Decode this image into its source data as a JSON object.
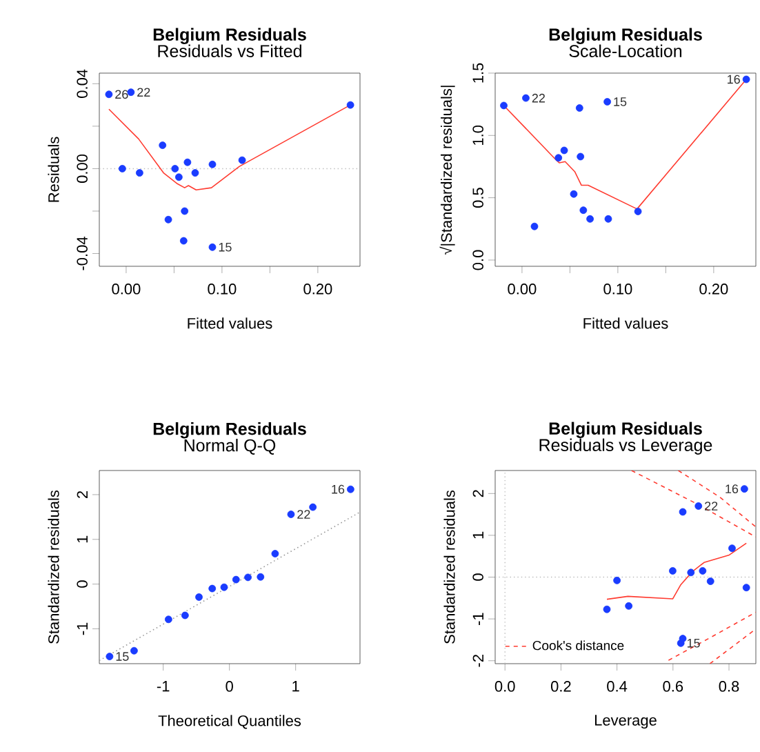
{
  "chart_data": [
    {
      "type": "scatter",
      "title": "Belgium Residuals",
      "subtitle": "Residuals vs Fitted",
      "xlabel": "Fitted values",
      "ylabel": "Residuals",
      "xlim": [
        -0.028,
        0.244
      ],
      "ylim": [
        -0.046,
        0.045
      ],
      "xticks": [
        {
          "value": 0,
          "label": "0.00"
        },
        {
          "value": 0.05,
          "label": null
        },
        {
          "value": 0.1,
          "label": "0.10"
        },
        {
          "value": 0.15,
          "label": null
        },
        {
          "value": 0.2,
          "label": "0.20"
        }
      ],
      "yticks": [
        {
          "value": -0.04,
          "label": "-0.04"
        },
        {
          "value": -0.02,
          "label": null
        },
        {
          "value": 0,
          "label": "0.00"
        },
        {
          "value": 0.02,
          "label": null
        },
        {
          "value": 0.04,
          "label": "0.04"
        }
      ],
      "series": [
        {
          "type": "scatter",
          "marker": "circle",
          "color": "#1a3cff",
          "x": [
            -0.018,
            0.005,
            -0.004,
            0.014,
            0.038,
            0.044,
            0.051,
            0.055,
            0.064,
            0.072,
            0.061,
            0.06,
            0.09,
            0.09,
            0.121,
            0.234
          ],
          "values": [
            0.035,
            0.036,
            0.0,
            -0.002,
            0.011,
            -0.024,
            0.0,
            -0.004,
            0.003,
            -0.002,
            -0.02,
            -0.034,
            0.002,
            -0.037,
            0.004,
            0.03
          ]
        },
        {
          "type": "line",
          "color": "#ff3b30",
          "x": [
            -0.018,
            0.013,
            0.039,
            0.053,
            0.061,
            0.065,
            0.073,
            0.089,
            0.118,
            0.234
          ],
          "values": [
            0.028,
            0.014,
            -0.002,
            -0.007,
            -0.009,
            -0.008,
            -0.01,
            -0.009,
            0.001,
            0.03
          ]
        }
      ],
      "ref_lines": [
        {
          "axis": "y",
          "value": 0,
          "color": "#bbbbbb",
          "line_style": "dotted"
        }
      ],
      "annotations": [
        {
          "text": "26",
          "x": -0.018,
          "y": 0.035
        },
        {
          "text": "22",
          "x": 0.005,
          "y": 0.036
        },
        {
          "text": "15",
          "x": 0.09,
          "y": -0.037
        }
      ]
    },
    {
      "type": "scatter",
      "title": "Belgium Residuals",
      "subtitle": "Scale-Location",
      "xlabel": "Fitted values",
      "ylabel": "√|Standardized residuals|",
      "xlim": [
        -0.028,
        0.244
      ],
      "ylim": [
        -0.05,
        1.5
      ],
      "xticks": [
        {
          "value": 0,
          "label": "0.00"
        },
        {
          "value": 0.05,
          "label": null
        },
        {
          "value": 0.1,
          "label": "0.10"
        },
        {
          "value": 0.15,
          "label": null
        },
        {
          "value": 0.2,
          "label": "0.20"
        }
      ],
      "yticks": [
        {
          "value": 0,
          "label": "0.0"
        },
        {
          "value": 0.5,
          "label": "0.5"
        },
        {
          "value": 1,
          "label": "1.0"
        },
        {
          "value": 1.5,
          "label": "1.5"
        }
      ],
      "series": [
        {
          "type": "scatter",
          "marker": "circle",
          "color": "#1a3cff",
          "x": [
            -0.019,
            0.004,
            0.013,
            0.038,
            0.044,
            0.054,
            0.06,
            0.061,
            0.064,
            0.071,
            0.089,
            0.09,
            0.121,
            0.234
          ],
          "values": [
            1.24,
            1.3,
            0.27,
            0.82,
            0.88,
            0.53,
            1.22,
            0.83,
            0.4,
            0.33,
            1.27,
            0.33,
            0.39,
            1.45
          ]
        },
        {
          "type": "line",
          "color": "#ff3b30",
          "x": [
            -0.019,
            0.036,
            0.039,
            0.045,
            0.055,
            0.062,
            0.069,
            0.12,
            0.234
          ],
          "values": [
            1.24,
            0.8,
            0.78,
            0.79,
            0.71,
            0.6,
            0.6,
            0.41,
            1.45
          ]
        }
      ],
      "annotations": [
        {
          "text": "22",
          "x": 0.004,
          "y": 1.3
        },
        {
          "text": "15",
          "x": 0.089,
          "y": 1.27
        },
        {
          "text": "16",
          "x": 0.234,
          "y": 1.45
        }
      ]
    },
    {
      "type": "scatter",
      "title": "Belgium Residuals",
      "subtitle": "Normal Q-Q",
      "xlabel": "Theoretical Quantiles",
      "ylabel": "Standardized residuals",
      "xlim": [
        -1.965,
        1.972
      ],
      "ylim": [
        -1.78,
        2.54
      ],
      "xticks": [
        -1,
        0,
        1
      ],
      "yticks": [
        -1,
        0,
        1,
        2
      ],
      "series": [
        {
          "type": "scatter",
          "marker": "circle",
          "color": "#1a3cff",
          "x": [
            -1.81,
            -1.44,
            -0.92,
            -0.67,
            -0.46,
            -0.26,
            -0.08,
            0.1,
            0.28,
            0.47,
            0.69,
            0.93,
            1.26,
            1.83
          ],
          "values": [
            -1.62,
            -1.49,
            -0.79,
            -0.7,
            -0.29,
            -0.1,
            -0.07,
            0.1,
            0.15,
            0.16,
            0.68,
            1.56,
            1.72,
            2.12
          ]
        },
        {
          "type": "line",
          "color": "#999999",
          "line_style": "dotted",
          "x": [
            -1.965,
            1.972
          ],
          "values": [
            -1.71,
            1.61
          ]
        }
      ],
      "annotations": [
        {
          "text": "15",
          "x": -1.81,
          "y": -1.62
        },
        {
          "text": "22",
          "x": 0.93,
          "y": 1.56
        },
        {
          "text": "16",
          "x": 1.83,
          "y": 2.12
        }
      ]
    },
    {
      "type": "scatter",
      "title": "Belgium Residuals",
      "subtitle": "Residuals vs Leverage",
      "xlabel": "Leverage",
      "ylabel": "Standardized residuals",
      "legend": "bottom left",
      "xlim": [
        -0.035,
        0.896
      ],
      "ylim": [
        -2.07,
        2.55
      ],
      "xticks": [
        {
          "value": 0,
          "label": "0.0"
        },
        {
          "value": 0.2,
          "label": "0.2"
        },
        {
          "value": 0.4,
          "label": "0.4"
        },
        {
          "value": 0.6,
          "label": "0.6"
        },
        {
          "value": 0.8,
          "label": "0.8"
        }
      ],
      "yticks": [
        -2,
        -1,
        0,
        1,
        2
      ],
      "series": [
        {
          "type": "scatter",
          "marker": "circle",
          "color": "#1a3cff",
          "x": [
            0.364,
            0.4,
            0.442,
            0.599,
            0.635,
            0.664,
            0.691,
            0.706,
            0.734,
            0.811,
            0.855,
            0.862,
            0.635,
            0.628
          ],
          "values": [
            -0.77,
            -0.08,
            -0.69,
            0.15,
            1.56,
            0.11,
            1.7,
            0.15,
            -0.1,
            0.69,
            2.11,
            -0.25,
            -1.47,
            -1.58
          ]
        },
        {
          "type": "line",
          "color": "#ff3b30",
          "x": [
            0.364,
            0.439,
            0.599,
            0.628,
            0.669,
            0.711,
            0.801,
            0.862
          ],
          "values": [
            -0.53,
            -0.46,
            -0.52,
            -0.18,
            0.13,
            0.35,
            0.53,
            0.81
          ]
        },
        {
          "type": "line",
          "name": "Cook's distance",
          "color": "#ff3b30",
          "line_style": "dashed",
          "x": [
            0.452,
            0.686,
            0.896
          ],
          "values": [
            2.55,
            1.75,
            0.96
          ]
        },
        {
          "type": "line",
          "color": "#ff3b30",
          "line_style": "dashed",
          "x": [
            0.619,
            0.768,
            0.896
          ],
          "values": [
            2.55,
            1.91,
            1.2
          ]
        },
        {
          "type": "line",
          "color": "#ff3b30",
          "line_style": "dashed",
          "x": [
            0.584,
            0.735,
            0.896
          ],
          "values": [
            -1.99,
            -1.44,
            -0.84
          ]
        },
        {
          "type": "line",
          "color": "#ff3b30",
          "line_style": "dashed",
          "x": [
            0.732,
            0.896
          ],
          "values": [
            -2.07,
            -1.24
          ]
        }
      ],
      "ref_lines": [
        {
          "axis": "y",
          "value": 0,
          "color": "#bbbbbb",
          "line_style": "dotted"
        },
        {
          "axis": "x",
          "value": 0,
          "color": "#bbbbbb",
          "line_style": "dotted"
        }
      ],
      "annotations": [
        {
          "text": "22",
          "x": 0.691,
          "y": 1.7
        },
        {
          "text": "16",
          "x": 0.855,
          "y": 2.11
        },
        {
          "text": "15",
          "x": 0.628,
          "y": -1.58
        }
      ]
    }
  ]
}
